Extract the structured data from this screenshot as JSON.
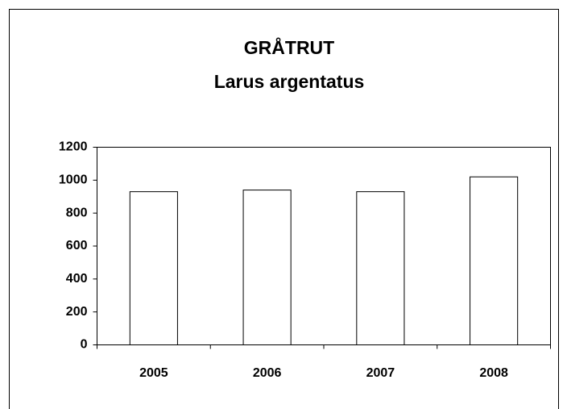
{
  "chart_data": {
    "type": "bar",
    "title": "GRÅTRUT",
    "subtitle": "Larus argentatus",
    "categories": [
      "2005",
      "2006",
      "2007",
      "2008"
    ],
    "values": [
      930,
      940,
      930,
      1020
    ],
    "color": "#ffffff",
    "ylim": [
      0,
      1200
    ],
    "yticks": [
      0,
      200,
      400,
      600,
      800,
      1000,
      1200
    ],
    "grid": false
  }
}
